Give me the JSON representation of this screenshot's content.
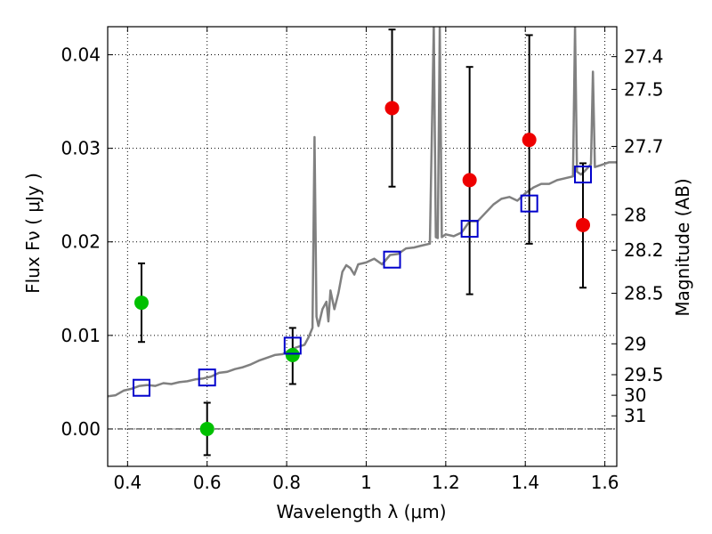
{
  "chart_data": {
    "type": "scatter",
    "xlabel": "Wavelength  λ (μm)",
    "ylabel": "Flux  Fν  ( μJy )",
    "ylabel_right": "Magnitude (AB)",
    "xlim": [
      0.35,
      1.63
    ],
    "ylim": [
      -0.004,
      0.043
    ],
    "grid": true,
    "x_ticks": [
      0.4,
      0.6,
      0.8,
      1.0,
      1.2,
      1.4,
      1.6
    ],
    "x_tick_labels": [
      "0.4",
      "0.6",
      "0.8",
      "1",
      "1.2",
      "1.4",
      "1.6"
    ],
    "y_ticks": [
      0.0,
      0.01,
      0.02,
      0.03,
      0.04
    ],
    "y_tick_labels": [
      "0.00",
      "0.01",
      "0.02",
      "0.03",
      "0.04"
    ],
    "right_axis_ticks": [
      {
        "flux": 0.0398,
        "label": "27.4"
      },
      {
        "flux": 0.0363,
        "label": "27.5"
      },
      {
        "flux": 0.0302,
        "label": "27.7"
      },
      {
        "flux": 0.0229,
        "label": "28"
      },
      {
        "flux": 0.0191,
        "label": "28.2"
      },
      {
        "flux": 0.0145,
        "label": "28.5"
      },
      {
        "flux": 0.0091,
        "label": "29"
      },
      {
        "flux": 0.0058,
        "label": "29.5"
      },
      {
        "flux": 0.0036,
        "label": "30"
      },
      {
        "flux": 0.0014,
        "label": "31"
      }
    ],
    "series": [
      {
        "kind": "line",
        "color": "#808080",
        "points": [
          [
            0.35,
            0.0035
          ],
          [
            0.37,
            0.0036
          ],
          [
            0.39,
            0.0041
          ],
          [
            0.41,
            0.0043
          ],
          [
            0.43,
            0.0046
          ],
          [
            0.45,
            0.0047
          ],
          [
            0.47,
            0.0046
          ],
          [
            0.49,
            0.0049
          ],
          [
            0.51,
            0.0048
          ],
          [
            0.53,
            0.005
          ],
          [
            0.55,
            0.0051
          ],
          [
            0.57,
            0.0053
          ],
          [
            0.59,
            0.0054
          ],
          [
            0.61,
            0.0056
          ],
          [
            0.63,
            0.006
          ],
          [
            0.65,
            0.0061
          ],
          [
            0.67,
            0.0064
          ],
          [
            0.69,
            0.0066
          ],
          [
            0.71,
            0.0069
          ],
          [
            0.73,
            0.0073
          ],
          [
            0.75,
            0.0076
          ],
          [
            0.77,
            0.0079
          ],
          [
            0.79,
            0.008
          ],
          [
            0.81,
            0.0085
          ],
          [
            0.83,
            0.0088
          ],
          [
            0.845,
            0.009
          ],
          [
            0.855,
            0.0098
          ],
          [
            0.865,
            0.0108
          ],
          [
            0.87,
            0.0312
          ],
          [
            0.875,
            0.012
          ],
          [
            0.88,
            0.011
          ],
          [
            0.89,
            0.0128
          ],
          [
            0.9,
            0.0136
          ],
          [
            0.905,
            0.0115
          ],
          [
            0.91,
            0.0148
          ],
          [
            0.92,
            0.0128
          ],
          [
            0.93,
            0.0145
          ],
          [
            0.94,
            0.0168
          ],
          [
            0.95,
            0.0175
          ],
          [
            0.96,
            0.0172
          ],
          [
            0.97,
            0.0165
          ],
          [
            0.98,
            0.0176
          ],
          [
            1.0,
            0.0178
          ],
          [
            1.02,
            0.0182
          ],
          [
            1.04,
            0.0176
          ],
          [
            1.06,
            0.0186
          ],
          [
            1.08,
            0.0187
          ],
          [
            1.1,
            0.0193
          ],
          [
            1.12,
            0.0194
          ],
          [
            1.14,
            0.0196
          ],
          [
            1.16,
            0.0198
          ],
          [
            1.17,
            0.043
          ],
          [
            1.175,
            0.0205
          ],
          [
            1.18,
            0.0204
          ],
          [
            1.185,
            0.043
          ],
          [
            1.19,
            0.0205
          ],
          [
            1.2,
            0.0208
          ],
          [
            1.22,
            0.0206
          ],
          [
            1.24,
            0.021
          ],
          [
            1.26,
            0.0222
          ],
          [
            1.28,
            0.0222
          ],
          [
            1.3,
            0.0231
          ],
          [
            1.32,
            0.024
          ],
          [
            1.34,
            0.0246
          ],
          [
            1.36,
            0.0248
          ],
          [
            1.38,
            0.0244
          ],
          [
            1.4,
            0.0252
          ],
          [
            1.42,
            0.0258
          ],
          [
            1.44,
            0.0262
          ],
          [
            1.46,
            0.0262
          ],
          [
            1.48,
            0.0266
          ],
          [
            1.5,
            0.0268
          ],
          [
            1.52,
            0.027
          ],
          [
            1.525,
            0.043
          ],
          [
            1.53,
            0.0275
          ],
          [
            1.54,
            0.0272
          ],
          [
            1.55,
            0.0276
          ],
          [
            1.565,
            0.0283
          ],
          [
            1.57,
            0.0382
          ],
          [
            1.575,
            0.028
          ],
          [
            1.59,
            0.0282
          ],
          [
            1.61,
            0.0285
          ],
          [
            1.63,
            0.0285
          ]
        ]
      },
      {
        "kind": "points",
        "marker": "circle",
        "color": "#00c000",
        "points": [
          {
            "x": 0.435,
            "y": 0.0135,
            "yerr_low": 0.0093,
            "yerr_high": 0.0177
          },
          {
            "x": 0.6,
            "y": 0.0,
            "yerr_low": -0.0028,
            "yerr_high": 0.0028
          },
          {
            "x": 0.815,
            "y": 0.0079,
            "yerr_low": 0.0048,
            "yerr_high": 0.0108
          }
        ]
      },
      {
        "kind": "points",
        "marker": "circle",
        "color": "#ee0000",
        "points": [
          {
            "x": 1.065,
            "y": 0.0343,
            "yerr_low": 0.0259,
            "yerr_high": 0.0427
          },
          {
            "x": 1.26,
            "y": 0.0266,
            "yerr_low": 0.0144,
            "yerr_high": 0.0387
          },
          {
            "x": 1.41,
            "y": 0.0309,
            "yerr_low": 0.0198,
            "yerr_high": 0.0421
          },
          {
            "x": 1.545,
            "y": 0.0218,
            "yerr_low": 0.0151,
            "yerr_high": 0.0284
          }
        ]
      },
      {
        "kind": "points",
        "marker": "open-square",
        "color": "#0000cc",
        "points": [
          {
            "x": 0.435,
            "y": 0.0044
          },
          {
            "x": 0.6,
            "y": 0.0055
          },
          {
            "x": 0.815,
            "y": 0.0089
          },
          {
            "x": 1.065,
            "y": 0.0181
          },
          {
            "x": 1.26,
            "y": 0.0214
          },
          {
            "x": 1.41,
            "y": 0.0241
          },
          {
            "x": 1.545,
            "y": 0.0272
          }
        ]
      }
    ]
  }
}
